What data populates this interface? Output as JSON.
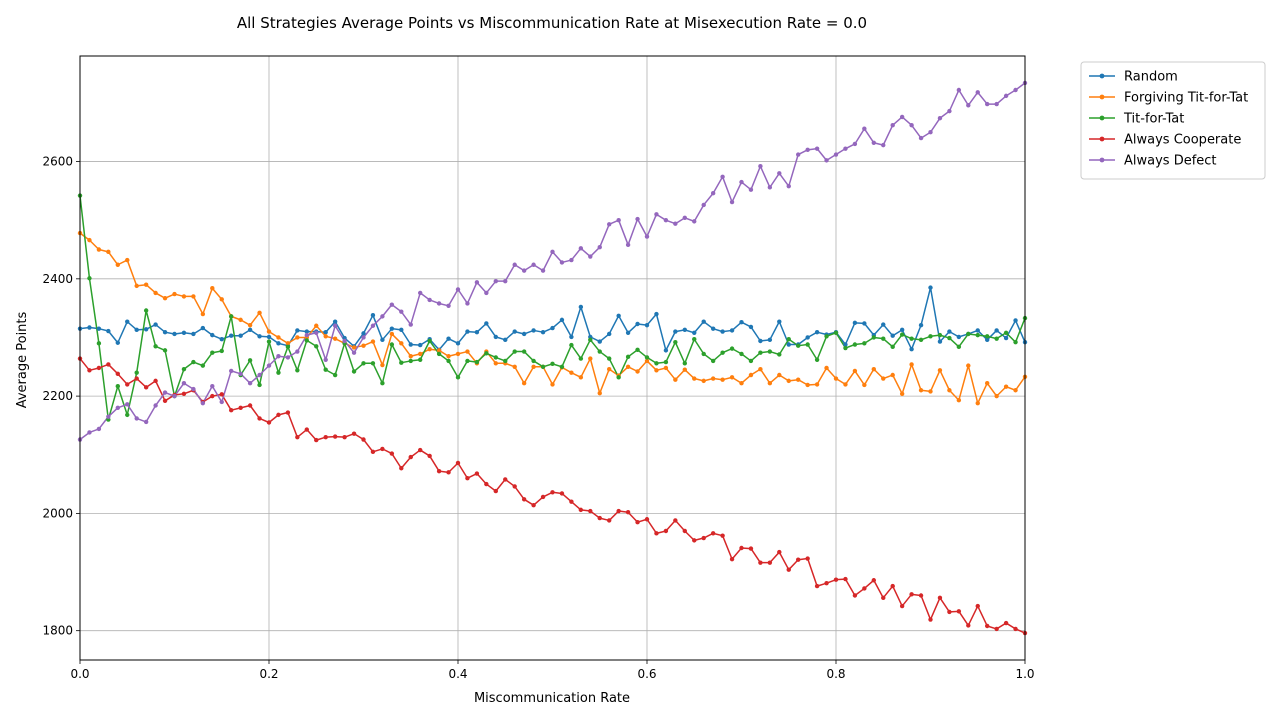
{
  "chart_data": {
    "type": "line",
    "title": "All Strategies Average Points vs Miscommunication Rate at Misexecution Rate = 0.0",
    "xlabel": "Miscommunication Rate",
    "ylabel": "Average Points",
    "xlim": [
      0,
      1
    ],
    "ylim": [
      1750,
      2780
    ],
    "x_ticks": [
      0,
      0.2,
      0.4,
      0.6,
      0.8,
      1
    ],
    "x_tick_labels": [
      "0.0",
      "0.2",
      "0.4",
      "0.6",
      "0.8",
      "1.0"
    ],
    "y_ticks": [
      1800,
      2000,
      2200,
      2400,
      2600
    ],
    "y_tick_labels": [
      "1800",
      "2000",
      "2200",
      "2400",
      "2600"
    ],
    "grid": true,
    "legend_position": "outside-top-right",
    "x_step": 0.01,
    "series": [
      {
        "name": "Random",
        "color": "#1f77b4",
        "values": [
          2315,
          2317,
          2315,
          2311,
          2291,
          2327,
          2313,
          2314,
          2322,
          2309,
          2306,
          2308,
          2306,
          2316,
          2304,
          2297,
          2303,
          2303,
          2313,
          2302,
          2301,
          2290,
          2286,
          2312,
          2310,
          2310,
          2309,
          2327,
          2299,
          2285,
          2307,
          2338,
          2296,
          2315,
          2313,
          2288,
          2287,
          2297,
          2279,
          2298,
          2290,
          2310,
          2309,
          2324,
          2301,
          2296,
          2310,
          2306,
          2312,
          2309,
          2316,
          2330,
          2301,
          2352,
          2301,
          2293,
          2306,
          2337,
          2308,
          2323,
          2321,
          2340,
          2278,
          2310,
          2313,
          2308,
          2327,
          2315,
          2310,
          2312,
          2326,
          2318,
          2294,
          2296,
          2327,
          2288,
          2288,
          2300,
          2309,
          2305,
          2309,
          2288,
          2325,
          2324,
          2304,
          2322,
          2303,
          2313,
          2280,
          2321,
          2385,
          2293,
          2310,
          2301,
          2306,
          2312,
          2296,
          2312,
          2299,
          2329,
          2292
        ]
      },
      {
        "name": "Forgiving Tit-for-Tat",
        "color": "#ff7f0e",
        "values": [
          2478,
          2466,
          2450,
          2446,
          2424,
          2432,
          2388,
          2390,
          2376,
          2367,
          2374,
          2370,
          2370,
          2340,
          2384,
          2365,
          2336,
          2330,
          2321,
          2342,
          2310,
          2300,
          2290,
          2300,
          2300,
          2320,
          2302,
          2298,
          2290,
          2283,
          2286,
          2293,
          2253,
          2306,
          2290,
          2268,
          2272,
          2280,
          2278,
          2268,
          2272,
          2276,
          2256,
          2276,
          2256,
          2256,
          2250,
          2222,
          2250,
          2250,
          2220,
          2249,
          2240,
          2232,
          2264,
          2205,
          2246,
          2235,
          2250,
          2242,
          2260,
          2244,
          2248,
          2228,
          2245,
          2230,
          2226,
          2230,
          2228,
          2232,
          2222,
          2236,
          2246,
          2222,
          2236,
          2226,
          2228,
          2219,
          2220,
          2248,
          2230,
          2220,
          2243,
          2219,
          2246,
          2230,
          2236,
          2204,
          2254,
          2210,
          2208,
          2244,
          2210,
          2193,
          2252,
          2188,
          2222,
          2200,
          2216,
          2210,
          2233
        ]
      },
      {
        "name": "Tit-for-Tat",
        "color": "#2ca02c",
        "values": [
          2542,
          2401,
          2290,
          2160,
          2217,
          2168,
          2240,
          2346,
          2285,
          2278,
          2200,
          2246,
          2258,
          2252,
          2274,
          2277,
          2336,
          2236,
          2261,
          2219,
          2293,
          2240,
          2284,
          2244,
          2295,
          2285,
          2245,
          2236,
          2290,
          2242,
          2256,
          2256,
          2222,
          2288,
          2257,
          2260,
          2262,
          2294,
          2272,
          2260,
          2232,
          2260,
          2258,
          2273,
          2266,
          2260,
          2276,
          2276,
          2260,
          2250,
          2255,
          2250,
          2287,
          2264,
          2296,
          2276,
          2264,
          2232,
          2267,
          2279,
          2266,
          2256,
          2258,
          2292,
          2256,
          2297,
          2272,
          2260,
          2274,
          2281,
          2272,
          2260,
          2274,
          2276,
          2271,
          2297,
          2286,
          2288,
          2262,
          2302,
          2308,
          2282,
          2288,
          2290,
          2300,
          2298,
          2284,
          2305,
          2298,
          2296,
          2302,
          2304,
          2299,
          2284,
          2306,
          2304,
          2302,
          2298,
          2308,
          2292,
          2333
        ]
      },
      {
        "name": "Always Cooperate",
        "color": "#d62728",
        "values": [
          2264,
          2244,
          2248,
          2254,
          2238,
          2220,
          2230,
          2215,
          2226,
          2192,
          2202,
          2204,
          2210,
          2190,
          2200,
          2203,
          2176,
          2180,
          2184,
          2162,
          2155,
          2168,
          2172,
          2130,
          2143,
          2125,
          2130,
          2131,
          2130,
          2136,
          2126,
          2105,
          2110,
          2102,
          2077,
          2096,
          2108,
          2098,
          2072,
          2070,
          2086,
          2060,
          2068,
          2050,
          2038,
          2058,
          2046,
          2024,
          2014,
          2028,
          2036,
          2034,
          2020,
          2006,
          2004,
          1992,
          1988,
          2004,
          2002,
          1985,
          1990,
          1966,
          1970,
          1988,
          1970,
          1954,
          1958,
          1966,
          1962,
          1922,
          1941,
          1940,
          1916,
          1916,
          1934,
          1904,
          1921,
          1923,
          1876,
          1881,
          1887,
          1888,
          1860,
          1872,
          1886,
          1856,
          1876,
          1842,
          1862,
          1860,
          1819,
          1856,
          1832,
          1833,
          1809,
          1842,
          1808,
          1803,
          1813,
          1803,
          1796
        ]
      },
      {
        "name": "Always Defect",
        "color": "#9467bd",
        "values": [
          2126,
          2138,
          2144,
          2165,
          2180,
          2186,
          2162,
          2156,
          2184,
          2206,
          2200,
          2222,
          2212,
          2188,
          2217,
          2190,
          2243,
          2238,
          2222,
          2236,
          2252,
          2268,
          2266,
          2276,
          2304,
          2308,
          2262,
          2320,
          2294,
          2274,
          2300,
          2320,
          2336,
          2356,
          2344,
          2322,
          2376,
          2364,
          2358,
          2354,
          2382,
          2358,
          2394,
          2376,
          2396,
          2396,
          2424,
          2414,
          2424,
          2414,
          2446,
          2428,
          2432,
          2452,
          2438,
          2454,
          2493,
          2500,
          2458,
          2502,
          2472,
          2510,
          2500,
          2494,
          2504,
          2498,
          2526,
          2546,
          2574,
          2531,
          2565,
          2552,
          2592,
          2556,
          2580,
          2558,
          2612,
          2620,
          2622,
          2602,
          2612,
          2622,
          2630,
          2656,
          2632,
          2628,
          2662,
          2676,
          2662,
          2640,
          2650,
          2674,
          2686,
          2722,
          2696,
          2718,
          2698,
          2698,
          2712,
          2722,
          2734
        ]
      }
    ]
  }
}
